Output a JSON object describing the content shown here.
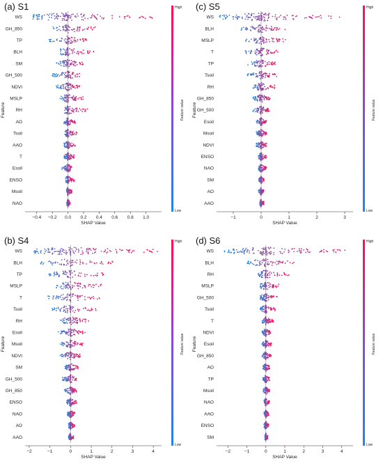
{
  "colors": {
    "low": "#1e88e5",
    "high": "#ff0d57",
    "zero_line": "#999999"
  },
  "colorbar": {
    "high_label": "High",
    "low_label": "Low",
    "title": "Feature value"
  },
  "chart_data": [
    {
      "type": "scatter",
      "id": "s1",
      "title": "(a) S1",
      "xlabel": "SHAP Value",
      "ylabel": "Feature",
      "xlim": [
        -0.55,
        1.2
      ],
      "xticks": [
        -0.4,
        -0.2,
        0.0,
        0.2,
        0.4,
        0.6,
        0.8,
        1.0
      ],
      "xtick_labels": [
        "−0.4",
        "−0.2",
        "0.0",
        "0.2",
        "0.4",
        "0.6",
        "0.8",
        "1.0"
      ],
      "features": [
        "WS",
        "GH_850",
        "TP",
        "BLH",
        "SM",
        "GH_500",
        "NDVI",
        "MSLP",
        "RH",
        "AO",
        "Tsoil",
        "AAO",
        "T",
        "Esoil",
        "ENSO",
        "Msoil",
        "NAO"
      ],
      "ranges": [
        [
          -0.45,
          1.1
        ],
        [
          -0.2,
          0.35
        ],
        [
          -0.25,
          0.25
        ],
        [
          -0.1,
          0.35
        ],
        [
          -0.15,
          0.2
        ],
        [
          -0.2,
          0.15
        ],
        [
          -0.15,
          0.15
        ],
        [
          -0.1,
          0.2
        ],
        [
          -0.05,
          0.25
        ],
        [
          -0.05,
          0.1
        ],
        [
          -0.05,
          0.12
        ],
        [
          -0.05,
          0.1
        ],
        [
          -0.05,
          0.08
        ],
        [
          -0.08,
          0.05
        ],
        [
          -0.03,
          0.08
        ],
        [
          -0.02,
          0.05
        ],
        [
          -0.02,
          0.03
        ]
      ]
    },
    {
      "type": "scatter",
      "id": "s5",
      "title": "(c) S5",
      "xlabel": "SHAP Value",
      "ylabel": "Feature",
      "xlim": [
        -1.6,
        3.3
      ],
      "xticks": [
        -1,
        0,
        1,
        2,
        3
      ],
      "xtick_labels": [
        "−1",
        "0",
        "1",
        "2",
        "3"
      ],
      "features": [
        "WS",
        "BLH",
        "MSLP",
        "T",
        "TP",
        "Tsoil",
        "RH",
        "GH_850",
        "GH_500",
        "Esoil",
        "Msoil",
        "NDVI",
        "ENSO",
        "NAO",
        "SM",
        "AO",
        "AAO"
      ],
      "ranges": [
        [
          -1.5,
          3.0
        ],
        [
          -0.9,
          0.9
        ],
        [
          -0.6,
          0.9
        ],
        [
          -0.6,
          0.6
        ],
        [
          -0.5,
          0.6
        ],
        [
          -0.5,
          0.6
        ],
        [
          -0.3,
          0.5
        ],
        [
          -0.3,
          0.4
        ],
        [
          -0.3,
          0.3
        ],
        [
          -0.2,
          0.2
        ],
        [
          -0.2,
          0.2
        ],
        [
          -0.2,
          0.2
        ],
        [
          -0.1,
          0.2
        ],
        [
          -0.1,
          0.2
        ],
        [
          -0.1,
          0.1
        ],
        [
          -0.1,
          0.1
        ],
        [
          -0.05,
          0.1
        ]
      ]
    },
    {
      "type": "scatter",
      "id": "s4",
      "title": "(b) S4",
      "xlabel": "SHAP Value",
      "ylabel": "Feature",
      "xlim": [
        -2.2,
        4.4
      ],
      "xticks": [
        -2,
        -1,
        0,
        1,
        2,
        3,
        4
      ],
      "xtick_labels": [
        "−2",
        "−1",
        "0",
        "1",
        "2",
        "3",
        "4"
      ],
      "features": [
        "WS",
        "BLH",
        "TP",
        "MSLP",
        "T",
        "Tsoil",
        "RH",
        "Esoil",
        "Msoil",
        "NDVI",
        "SM",
        "GH_500",
        "GH_850",
        "ENSO",
        "NAO",
        "AO",
        "AAO"
      ],
      "ranges": [
        [
          -1.9,
          4.2
        ],
        [
          -1.5,
          2.1
        ],
        [
          -1.1,
          1.6
        ],
        [
          -0.7,
          1.5
        ],
        [
          -1.1,
          1.4
        ],
        [
          -0.9,
          1.3
        ],
        [
          -0.5,
          0.9
        ],
        [
          -0.6,
          0.7
        ],
        [
          -0.5,
          0.6
        ],
        [
          -0.6,
          0.5
        ],
        [
          -0.3,
          0.4
        ],
        [
          -0.4,
          0.3
        ],
        [
          -0.3,
          0.3
        ],
        [
          -0.2,
          0.3
        ],
        [
          -0.15,
          0.2
        ],
        [
          -0.1,
          0.2
        ],
        [
          -0.1,
          0.15
        ]
      ]
    },
    {
      "type": "scatter",
      "id": "s6",
      "title": "(d) S6",
      "xlabel": "SHAP Value",
      "ylabel": "Feature",
      "xlim": [
        -2.6,
        4.6
      ],
      "xticks": [
        -2,
        -1,
        0,
        1,
        2,
        3,
        4
      ],
      "xtick_labels": [
        "−2",
        "−1",
        "0",
        "1",
        "2",
        "3",
        "4"
      ],
      "features": [
        "WS",
        "BLH",
        "RH",
        "MSLP",
        "GH_500",
        "Tsoil",
        "T",
        "NDVI",
        "Esoil",
        "GH_850",
        "AO",
        "TP",
        "Msoil",
        "NAO",
        "AAO",
        "ENSO",
        "SM"
      ],
      "ranges": [
        [
          -2.2,
          4.2
        ],
        [
          -1.0,
          1.6
        ],
        [
          -0.4,
          1.3
        ],
        [
          -0.3,
          0.7
        ],
        [
          -0.3,
          0.6
        ],
        [
          -0.3,
          0.5
        ],
        [
          -0.2,
          0.4
        ],
        [
          -0.2,
          0.3
        ],
        [
          -0.2,
          0.3
        ],
        [
          -0.2,
          0.3
        ],
        [
          -0.15,
          0.25
        ],
        [
          -0.15,
          0.2
        ],
        [
          -0.15,
          0.2
        ],
        [
          -0.1,
          0.2
        ],
        [
          -0.1,
          0.15
        ],
        [
          -0.1,
          0.15
        ],
        [
          -0.05,
          0.1
        ]
      ]
    }
  ]
}
